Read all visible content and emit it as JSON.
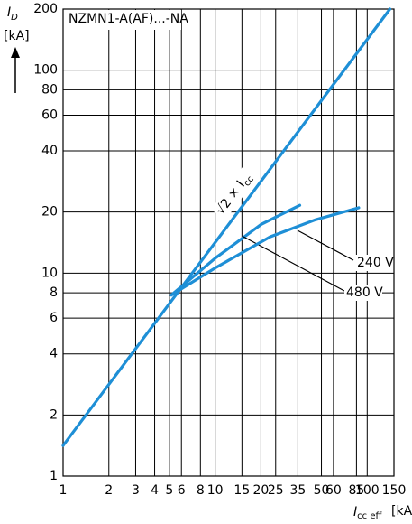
{
  "chart_data": {
    "type": "line",
    "title": "NZMN1-A(AF)...-NA",
    "x_label": "I",
    "x_label_sub": "cc eff",
    "x_unit": "[kA]",
    "y_label": "I",
    "y_label_sub": "D",
    "y_unit": "[kA]",
    "log_x": true,
    "log_y": true,
    "grid": true,
    "xlim": [
      1,
      150
    ],
    "ylim": [
      1,
      200
    ],
    "xticks": [
      1,
      2,
      3,
      4,
      5,
      6,
      8,
      10,
      15,
      20,
      25,
      35,
      50,
      60,
      85,
      100,
      150
    ],
    "yticks": [
      1,
      2,
      4,
      6,
      8,
      10,
      20,
      40,
      60,
      80,
      100,
      200
    ],
    "series": [
      {
        "name": "√2 × I",
        "name_sub": "cc",
        "color": "#1e8fd6",
        "x": [
          1,
          141
        ],
        "values": [
          1.414,
          200
        ]
      },
      {
        "name": "480 V",
        "color": "#1e8fd6",
        "x": [
          5.15,
          10.1,
          20.1,
          36
        ],
        "values": [
          7.8,
          11.9,
          17.4,
          21.6
        ]
      },
      {
        "name": "240 V",
        "color": "#1e8fd6",
        "x": [
          5.15,
          10,
          23,
          45.6,
          88
        ],
        "values": [
          7.8,
          10.6,
          15.1,
          18.3,
          21
        ]
      }
    ]
  }
}
